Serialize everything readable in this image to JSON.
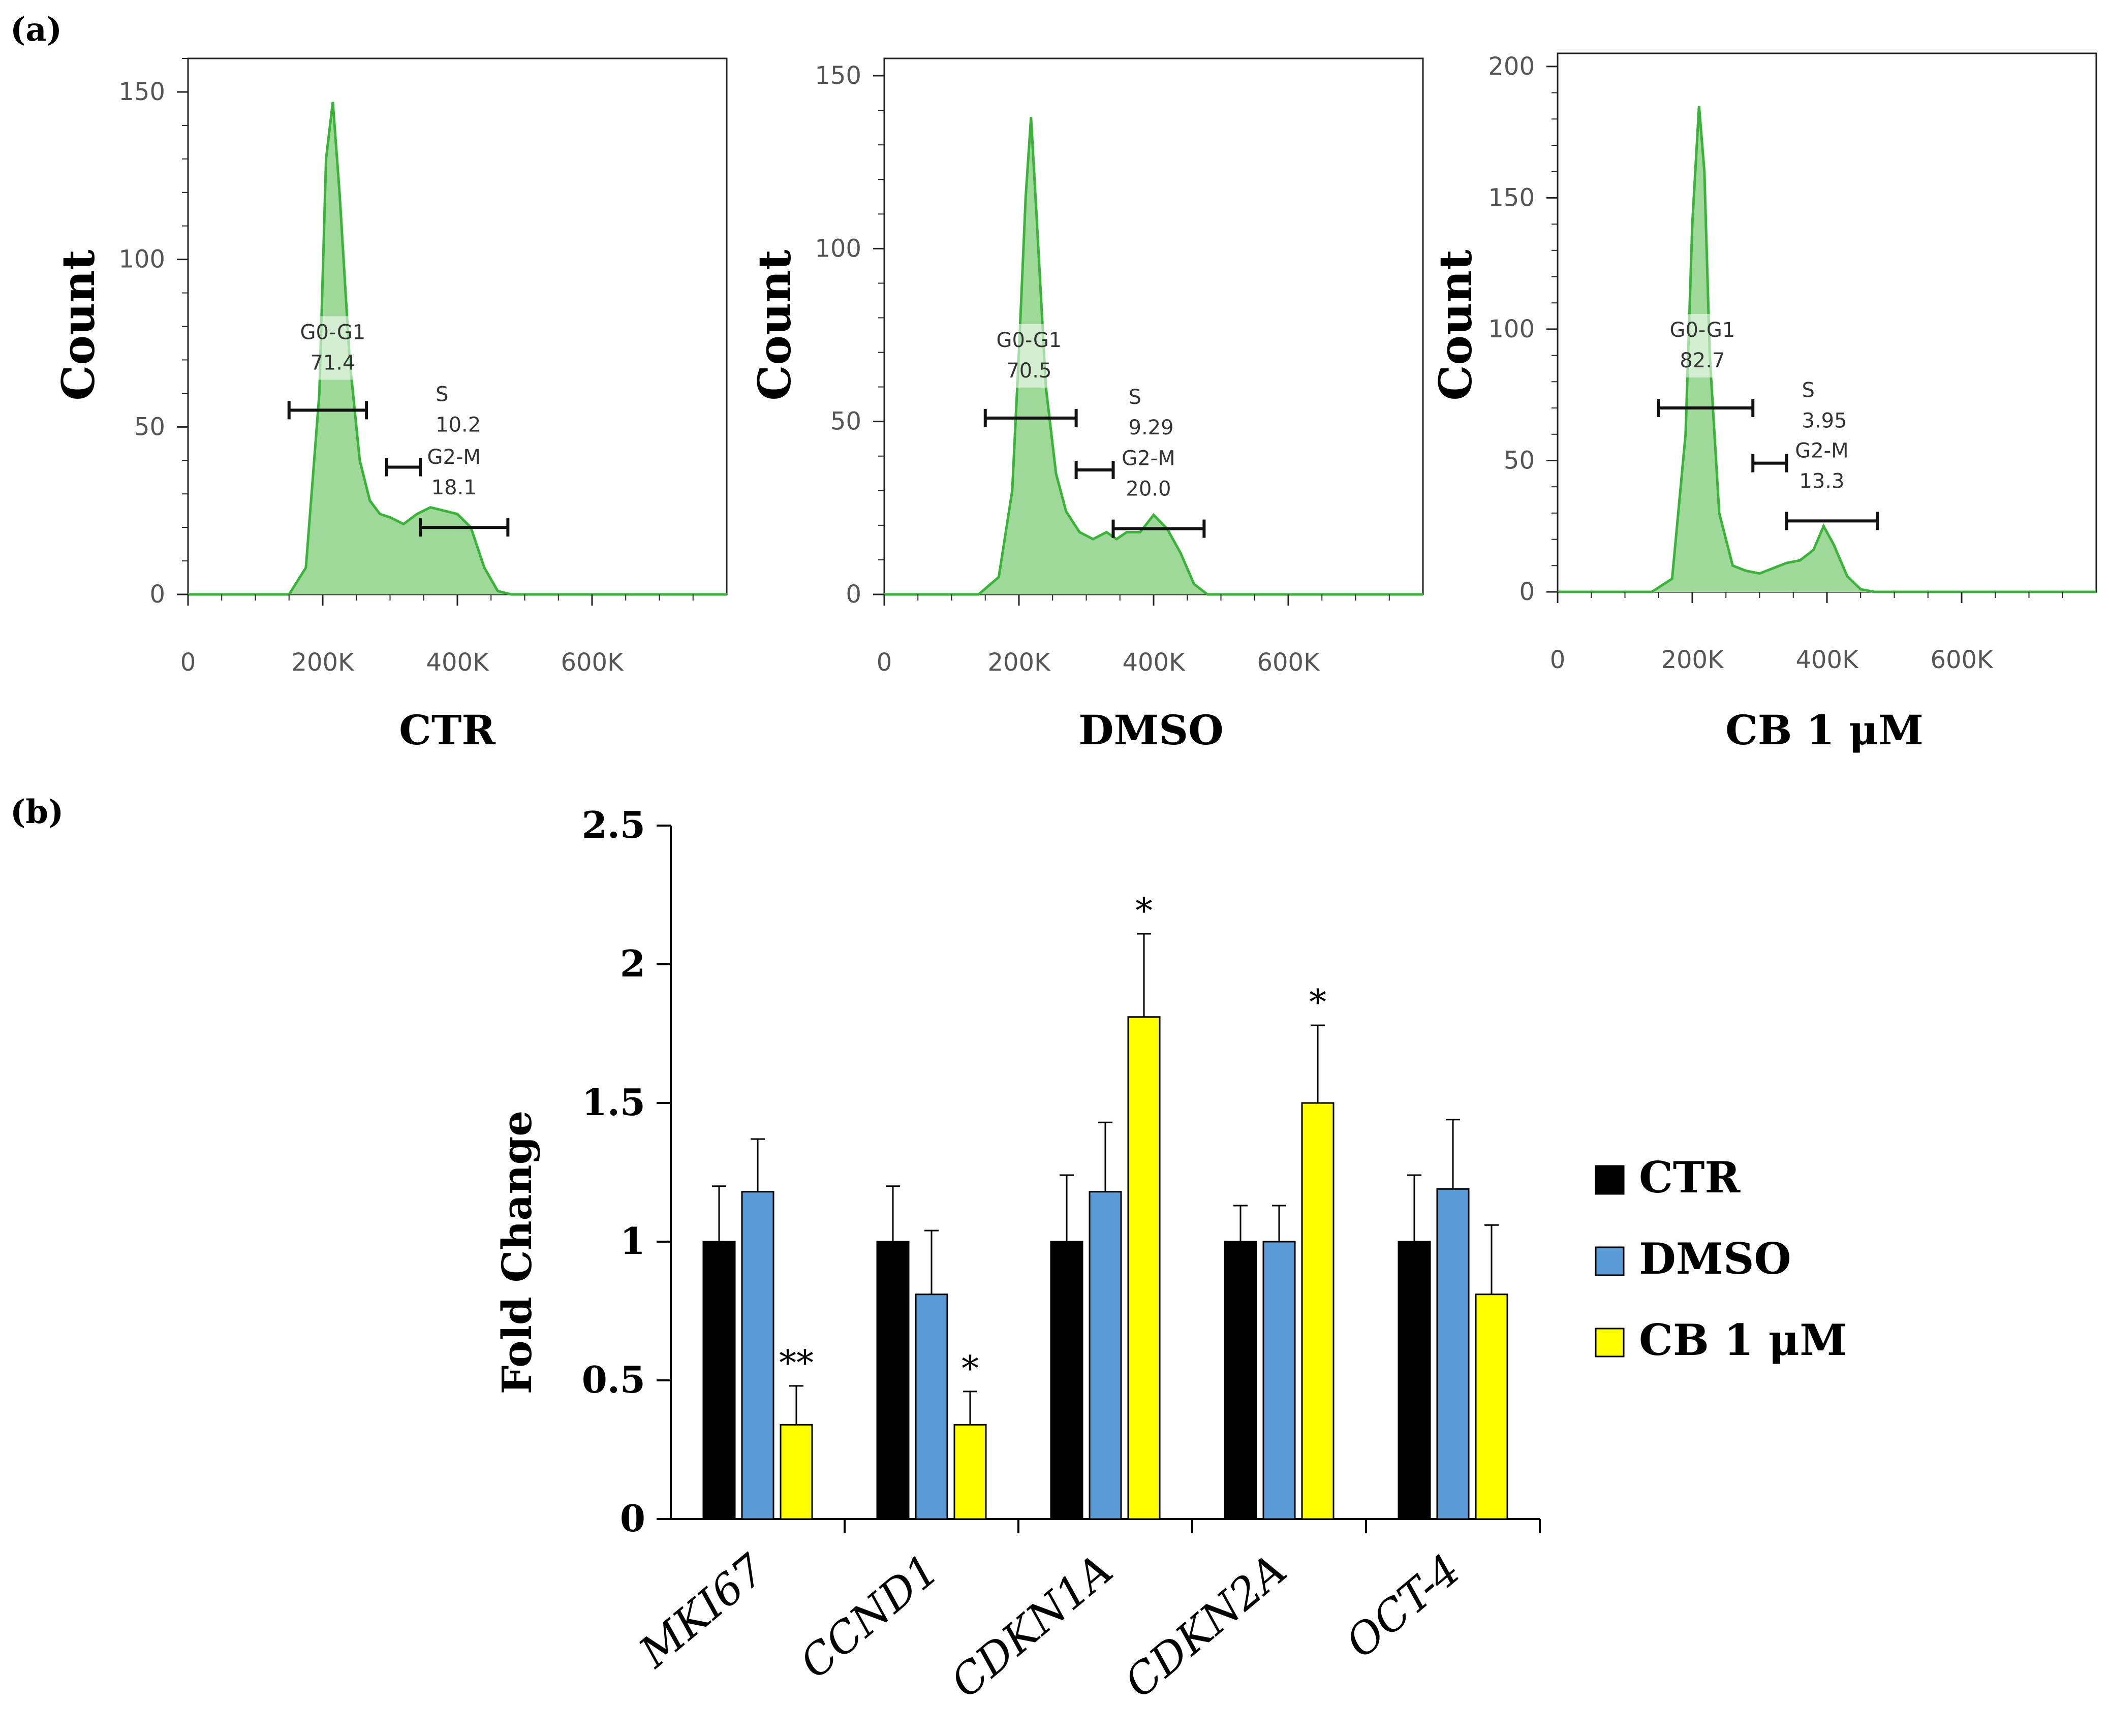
{
  "panel_a_letter": "(a)",
  "panel_b_letter": "(b)",
  "colors": {
    "histogram_fill": "#9ed99a",
    "histogram_line": "#3bb33b",
    "CTR": "#000000",
    "DMSO": "#5b9bd5",
    "CB": "#ffff00"
  },
  "chart_data": [
    {
      "type": "area",
      "title": "CTR",
      "ylabel": "Count",
      "xlim": [
        0,
        800000
      ],
      "ylim": [
        0,
        160
      ],
      "x_ticks": [
        "0",
        "200K",
        "400K",
        "600K"
      ],
      "y_ticks": [
        "0",
        "50",
        "100",
        "150"
      ],
      "x": [
        0,
        150000,
        175000,
        195000,
        205000,
        215000,
        225000,
        240000,
        255000,
        270000,
        285000,
        300000,
        320000,
        340000,
        360000,
        380000,
        400000,
        420000,
        440000,
        460000,
        480000,
        500000,
        800000
      ],
      "y": [
        0,
        0,
        8,
        60,
        130,
        147,
        120,
        70,
        40,
        28,
        24,
        23,
        21,
        24,
        26,
        25,
        24,
        20,
        8,
        1,
        0,
        0,
        0
      ],
      "gates": [
        {
          "name": "G0-G1",
          "value": "71.4",
          "x_from": 150000,
          "x_to": 265000,
          "y": 55
        },
        {
          "name": "S",
          "value": "10.2",
          "x_from": 295000,
          "x_to": 345000,
          "y": 38
        },
        {
          "name": "G2-M",
          "value": "18.1",
          "x_from": 345000,
          "x_to": 475000,
          "y": 20
        }
      ]
    },
    {
      "type": "area",
      "title": "DMSO",
      "ylabel": "Count",
      "xlim": [
        0,
        800000
      ],
      "ylim": [
        0,
        155
      ],
      "x_ticks": [
        "0",
        "200K",
        "400K",
        "600K"
      ],
      "y_ticks": [
        "0",
        "50",
        "100",
        "150"
      ],
      "x": [
        0,
        140000,
        170000,
        190000,
        200000,
        210000,
        218000,
        226000,
        240000,
        255000,
        270000,
        290000,
        310000,
        330000,
        345000,
        360000,
        380000,
        400000,
        420000,
        440000,
        460000,
        480000,
        800000
      ],
      "y": [
        0,
        0,
        5,
        30,
        70,
        115,
        138,
        110,
        60,
        35,
        24,
        18,
        16,
        18,
        16,
        18,
        18,
        23,
        19,
        12,
        3,
        0,
        0
      ],
      "gates": [
        {
          "name": "G0-G1",
          "value": "70.5",
          "x_from": 150000,
          "x_to": 285000,
          "y": 51
        },
        {
          "name": "S",
          "value": "9.29",
          "x_from": 285000,
          "x_to": 340000,
          "y": 36
        },
        {
          "name": "G2-M",
          "value": "20.0",
          "x_from": 340000,
          "x_to": 475000,
          "y": 19
        }
      ]
    },
    {
      "type": "area",
      "title": "CB 1 μM",
      "ylabel": "Count",
      "xlim": [
        0,
        800000
      ],
      "ylim": [
        0,
        205
      ],
      "x_ticks": [
        "0",
        "200K",
        "400K",
        "600K"
      ],
      "y_ticks": [
        "0",
        "50",
        "100",
        "150",
        "200"
      ],
      "x": [
        0,
        140000,
        170000,
        190000,
        200000,
        210000,
        218000,
        226000,
        240000,
        260000,
        280000,
        300000,
        320000,
        340000,
        360000,
        380000,
        395000,
        410000,
        430000,
        450000,
        470000,
        800000
      ],
      "y": [
        0,
        0,
        5,
        60,
        140,
        185,
        160,
        90,
        30,
        10,
        8,
        7,
        9,
        11,
        12,
        16,
        25,
        18,
        6,
        1,
        0,
        0
      ],
      "gates": [
        {
          "name": "G0-G1",
          "value": "82.7",
          "x_from": 150000,
          "x_to": 290000,
          "y": 70
        },
        {
          "name": "S",
          "value": "3.95",
          "x_from": 290000,
          "x_to": 340000,
          "y": 49
        },
        {
          "name": "G2-M",
          "value": "13.3",
          "x_from": 340000,
          "x_to": 475000,
          "y": 27
        }
      ]
    },
    {
      "type": "bar",
      "ylabel": "Fold Change",
      "ylim": [
        0,
        2.5
      ],
      "y_ticks": [
        "0",
        "0.5",
        "1",
        "1.5",
        "2",
        "2.5"
      ],
      "categories": [
        "MKI67",
        "CCND1",
        "CDKN1A",
        "CDKN2A",
        "OCT-4"
      ],
      "series": [
        {
          "name": "CTR",
          "values": [
            1.0,
            1.0,
            1.0,
            1.0,
            1.0
          ],
          "errors": [
            0.2,
            0.2,
            0.24,
            0.13,
            0.24
          ],
          "significance": [
            "",
            "",
            "",
            "",
            ""
          ]
        },
        {
          "name": "DMSO",
          "values": [
            1.18,
            0.81,
            1.18,
            1.0,
            1.19
          ],
          "errors": [
            0.19,
            0.23,
            0.25,
            0.13,
            0.25
          ],
          "significance": [
            "",
            "",
            "",
            "",
            ""
          ]
        },
        {
          "name": "CB 1 μM",
          "values": [
            0.34,
            0.34,
            1.81,
            1.5,
            0.81
          ],
          "errors": [
            0.14,
            0.12,
            0.3,
            0.28,
            0.25
          ],
          "significance": [
            "**",
            "*",
            "*",
            "*",
            ""
          ]
        }
      ],
      "legend_position": "right"
    }
  ]
}
